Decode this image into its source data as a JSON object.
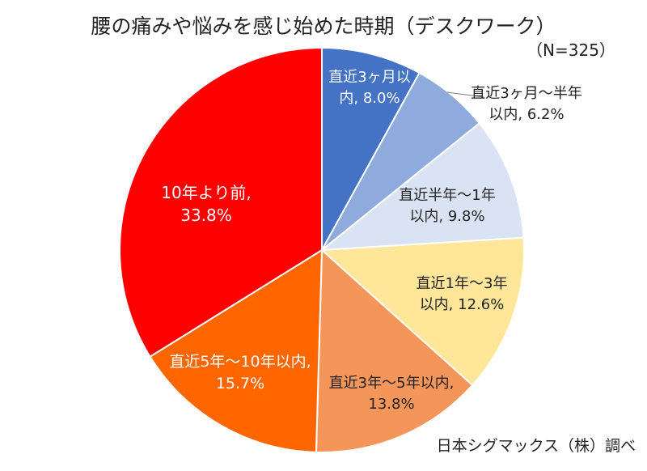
{
  "chart_data": {
    "type": "pie",
    "title": "腰の痛みや悩みを感じ始めた時期（デスクワーク）",
    "subtitle": "（N=325）",
    "source": "日本シグマックス（株）調べ",
    "unit": "%",
    "slices": [
      {
        "label_lines": [
          "直近3ヶ月以",
          "内, 8.0%"
        ],
        "value": 8.0,
        "color": "#4472c4",
        "label_color": "#ffffff"
      },
      {
        "label_lines": [
          "直近3ヶ月～半年",
          "以内, 6.2%"
        ],
        "value": 6.2,
        "color": "#8faadc",
        "label_color": "#222222"
      },
      {
        "label_lines": [
          "直近半年～1年",
          "以内, 9.8%"
        ],
        "value": 9.8,
        "color": "#dae3f3",
        "label_color": "#222222"
      },
      {
        "label_lines": [
          "直近1年～3年",
          "以内, 12.6%"
        ],
        "value": 12.6,
        "color": "#ffe699",
        "label_color": "#222222"
      },
      {
        "label_lines": [
          "直近3年～5年以内,",
          "13.8%"
        ],
        "value": 13.8,
        "color": "#f4955a",
        "label_color": "#222222"
      },
      {
        "label_lines": [
          "直近5年～10年以内,",
          "15.7%"
        ],
        "value": 15.7,
        "color": "#ff6600",
        "label_color": "#ffffff"
      },
      {
        "label_lines": [
          "10年より前,",
          "33.8%"
        ],
        "value": 33.8,
        "color": "#ff0000",
        "label_color": "#ffffff"
      }
    ]
  }
}
